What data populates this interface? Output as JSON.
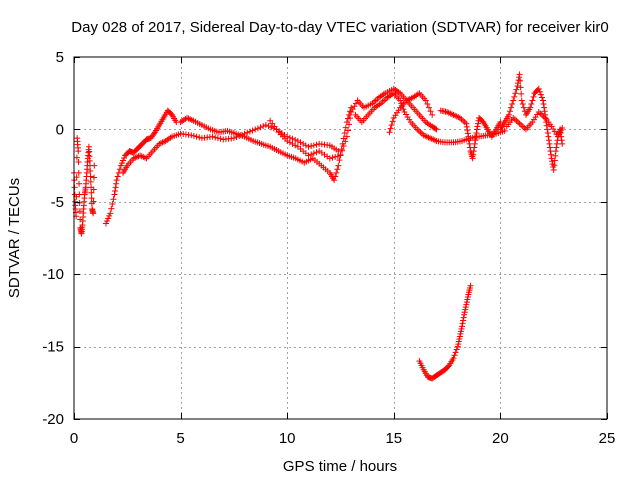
{
  "chart_data": {
    "type": "scatter",
    "title": "Day 028 of 2017, Sidereal Day-to-day VTEC variation (SDTVAR) for receiver kir0",
    "xlabel": "GPS time / hours",
    "ylabel": "SDTVAR / TECUs",
    "xlim": [
      0,
      25
    ],
    "ylim": [
      -20,
      5
    ],
    "xticks": [
      0,
      5,
      10,
      15,
      20,
      25
    ],
    "yticks": [
      5,
      0,
      -5,
      -10,
      -15,
      -20
    ],
    "grid": true,
    "marker": "+",
    "series": [
      {
        "name": "SDTVAR",
        "color": "#ff0000",
        "tracks": [
          [
            [
              0.0,
              -3.0
            ],
            [
              0.05,
              -5.0
            ],
            [
              0.1,
              -6.0
            ],
            [
              0.15,
              -0.6
            ],
            [
              0.2,
              -1.5
            ],
            [
              0.25,
              -4.5
            ],
            [
              0.3,
              -6.8
            ],
            [
              0.35,
              -7.2
            ],
            [
              0.4,
              -6.6
            ],
            [
              0.45,
              -5.5
            ],
            [
              0.5,
              -4.5
            ],
            [
              0.55,
              -4.0
            ],
            [
              0.6,
              -3.0
            ],
            [
              0.65,
              -2.0
            ],
            [
              0.7,
              -1.2
            ],
            [
              0.75,
              -2.5
            ],
            [
              0.8,
              -4.0
            ],
            [
              0.85,
              -5.5
            ],
            [
              0.9,
              -5.8
            ],
            [
              0.95,
              -2.5
            ]
          ],
          [
            [
              1.5,
              -6.5
            ],
            [
              1.7,
              -5.8
            ],
            [
              1.9,
              -4.5
            ],
            [
              2.0,
              -3.5
            ],
            [
              2.2,
              -2.5
            ],
            [
              2.4,
              -1.8
            ],
            [
              2.6,
              -1.5
            ],
            [
              2.8,
              -1.6
            ],
            [
              3.0,
              -1.3
            ],
            [
              3.2,
              -1.0
            ],
            [
              3.4,
              -0.7
            ],
            [
              3.6,
              -0.6
            ],
            [
              3.8,
              -0.2
            ],
            [
              4.0,
              0.3
            ],
            [
              4.2,
              0.8
            ],
            [
              4.4,
              1.3
            ],
            [
              4.6,
              1.0
            ],
            [
              4.8,
              0.5
            ]
          ],
          [
            [
              2.3,
              -3.0
            ],
            [
              2.5,
              -2.5
            ],
            [
              2.8,
              -2.0
            ],
            [
              3.1,
              -1.8
            ],
            [
              3.4,
              -2.0
            ],
            [
              3.7,
              -1.5
            ],
            [
              4.0,
              -1.0
            ],
            [
              4.3,
              -0.8
            ],
            [
              4.6,
              -0.5
            ],
            [
              5.0,
              -0.3
            ],
            [
              5.5,
              -0.4
            ],
            [
              6.0,
              -0.6
            ],
            [
              6.5,
              -0.5
            ],
            [
              7.0,
              -0.7
            ],
            [
              7.5,
              -0.6
            ],
            [
              8.0,
              -0.3
            ],
            [
              8.5,
              0.0
            ],
            [
              9.0,
              0.3
            ],
            [
              9.5,
              0.0
            ],
            [
              10.0,
              -0.5
            ],
            [
              10.5,
              -0.8
            ],
            [
              11.0,
              -1.2
            ],
            [
              11.5,
              -1.0
            ],
            [
              12.0,
              -1.1
            ],
            [
              12.4,
              -1.5
            ]
          ],
          [
            [
              5.0,
              0.5
            ],
            [
              5.3,
              0.8
            ],
            [
              5.6,
              0.6
            ],
            [
              6.0,
              0.3
            ],
            [
              6.4,
              0.0
            ],
            [
              6.8,
              -0.2
            ],
            [
              7.2,
              -0.1
            ],
            [
              7.6,
              -0.3
            ],
            [
              8.0,
              -0.5
            ],
            [
              8.4,
              -0.8
            ],
            [
              8.8,
              -1.0
            ],
            [
              9.2,
              -1.2
            ],
            [
              9.6,
              -1.5
            ],
            [
              10.0,
              -1.8
            ],
            [
              10.4,
              -2.0
            ],
            [
              10.8,
              -2.3
            ],
            [
              11.2,
              -2.0
            ],
            [
              11.6,
              -2.5
            ],
            [
              12.0,
              -3.0
            ],
            [
              12.2,
              -3.5
            ],
            [
              12.4,
              -2.5
            ],
            [
              12.6,
              -1.0
            ],
            [
              12.8,
              0.5
            ],
            [
              13.0,
              1.5
            ]
          ],
          [
            [
              9.2,
              0.6
            ],
            [
              9.6,
              -0.2
            ],
            [
              10.0,
              -0.8
            ],
            [
              10.5,
              -1.2
            ],
            [
              11.0,
              -1.8
            ],
            [
              11.5,
              -1.5
            ],
            [
              12.0,
              -2.0
            ],
            [
              12.5,
              -1.8
            ],
            [
              12.8,
              -0.5
            ],
            [
              13.0,
              1.2
            ],
            [
              13.3,
              2.0
            ],
            [
              13.6,
              1.5
            ],
            [
              14.0,
              1.8
            ],
            [
              14.3,
              2.2
            ],
            [
              14.6,
              2.5
            ],
            [
              15.0,
              2.8
            ],
            [
              15.3,
              2.5
            ],
            [
              15.6,
              2.0
            ],
            [
              15.9,
              1.5
            ],
            [
              16.2,
              1.0
            ],
            [
              16.5,
              0.5
            ],
            [
              16.8,
              0.2
            ],
            [
              17.0,
              0.0
            ]
          ],
          [
            [
              13.2,
              1.0
            ],
            [
              13.5,
              0.5
            ],
            [
              13.8,
              1.0
            ],
            [
              14.1,
              1.5
            ],
            [
              14.4,
              1.8
            ],
            [
              14.7,
              2.2
            ],
            [
              15.0,
              2.5
            ],
            [
              15.3,
              2.0
            ],
            [
              15.5,
              1.2
            ],
            [
              15.8,
              0.5
            ],
            [
              16.1,
              0.0
            ],
            [
              16.4,
              -0.4
            ],
            [
              16.7,
              -0.6
            ],
            [
              17.0,
              -0.8
            ],
            [
              17.4,
              -0.9
            ],
            [
              17.8,
              -0.9
            ],
            [
              18.2,
              -0.8
            ],
            [
              18.6,
              -0.6
            ],
            [
              19.0,
              -0.5
            ],
            [
              19.4,
              -0.4
            ],
            [
              19.8,
              -0.3
            ],
            [
              20.2,
              -0.1
            ]
          ],
          [
            [
              14.8,
              -0.2
            ],
            [
              15.0,
              0.8
            ],
            [
              15.3,
              1.5
            ],
            [
              15.6,
              2.0
            ],
            [
              15.9,
              2.2
            ],
            [
              16.2,
              2.5
            ],
            [
              16.5,
              2.0
            ],
            [
              16.8,
              1.0
            ]
          ],
          [
            [
              17.2,
              1.3
            ],
            [
              17.5,
              1.2
            ],
            [
              17.8,
              1.0
            ],
            [
              18.1,
              0.8
            ],
            [
              18.4,
              0.4
            ],
            [
              18.5,
              -0.5
            ],
            [
              18.6,
              -1.5
            ],
            [
              18.7,
              -2.0
            ],
            [
              18.8,
              -1.0
            ],
            [
              18.9,
              0.0
            ],
            [
              19.0,
              0.8
            ],
            [
              19.2,
              0.5
            ],
            [
              19.4,
              0.0
            ],
            [
              19.6,
              -0.5
            ],
            [
              19.8,
              0.0
            ],
            [
              20.0,
              0.5
            ]
          ],
          [
            [
              20.0,
              0.0
            ],
            [
              20.2,
              0.5
            ],
            [
              20.4,
              1.0
            ],
            [
              20.6,
              2.0
            ],
            [
              20.8,
              3.0
            ],
            [
              20.9,
              3.8
            ],
            [
              21.0,
              2.0
            ],
            [
              21.2,
              1.0
            ],
            [
              21.4,
              1.5
            ],
            [
              21.6,
              2.5
            ],
            [
              21.8,
              2.8
            ],
            [
              22.0,
              2.0
            ],
            [
              22.1,
              1.0
            ],
            [
              22.2,
              0.0
            ],
            [
              22.3,
              -1.0
            ],
            [
              22.4,
              -2.0
            ],
            [
              22.5,
              -2.8
            ],
            [
              22.6,
              -1.5
            ],
            [
              22.7,
              -0.5
            ],
            [
              22.8,
              0.0
            ],
            [
              22.9,
              -1.0
            ]
          ],
          [
            [
              20.3,
              0.2
            ],
            [
              20.6,
              0.8
            ],
            [
              20.9,
              0.4
            ],
            [
              21.2,
              0.0
            ],
            [
              21.5,
              0.5
            ],
            [
              21.8,
              1.2
            ],
            [
              22.1,
              0.8
            ],
            [
              22.4,
              0.2
            ],
            [
              22.7,
              -0.5
            ],
            [
              22.9,
              0.1
            ]
          ],
          [
            [
              16.2,
              -16.0
            ],
            [
              16.4,
              -16.6
            ],
            [
              16.6,
              -17.1
            ],
            [
              16.8,
              -17.2
            ],
            [
              17.0,
              -17.0
            ],
            [
              17.2,
              -16.8
            ],
            [
              17.4,
              -16.6
            ],
            [
              17.6,
              -16.3
            ],
            [
              17.8,
              -15.8
            ],
            [
              18.0,
              -15.0
            ],
            [
              18.1,
              -14.3
            ],
            [
              18.2,
              -13.6
            ],
            [
              18.3,
              -12.8
            ],
            [
              18.4,
              -12.1
            ],
            [
              18.5,
              -11.4
            ],
            [
              18.6,
              -10.8
            ]
          ]
        ]
      }
    ]
  }
}
